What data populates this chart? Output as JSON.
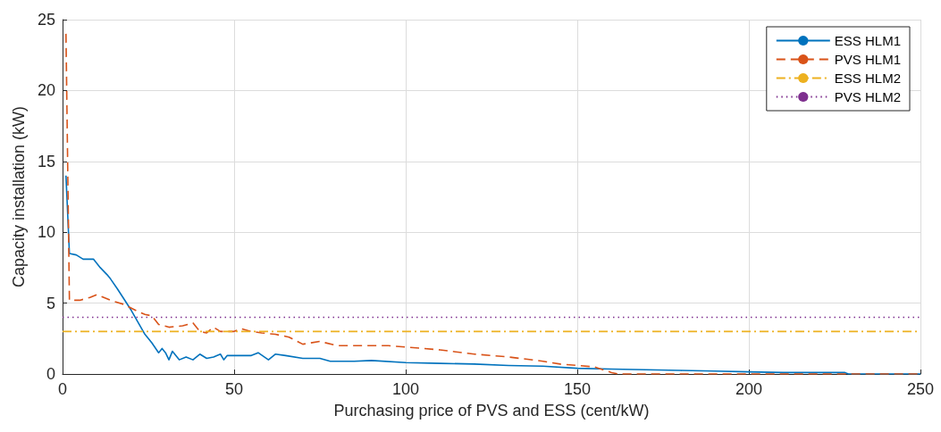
{
  "chart_data": {
    "type": "line",
    "xlabel": "Purchasing price of PVS and ESS (cent/kW)",
    "ylabel": "Capacity installation (kW)",
    "xlim": [
      0,
      250
    ],
    "ylim": [
      0,
      25
    ],
    "xticks": [
      0,
      50,
      100,
      150,
      200,
      250
    ],
    "yticks": [
      0,
      5,
      10,
      15,
      20,
      25
    ],
    "grid": true,
    "legend": "top right",
    "marker": "none",
    "series": [
      {
        "name": "ESS HLM1",
        "color": "#0072bd",
        "line_style": "solid",
        "x": [
          1,
          2,
          4,
          6,
          9,
          11,
          13,
          14,
          16,
          20,
          24,
          26,
          28,
          29,
          30,
          31,
          32,
          34,
          36,
          38,
          40,
          42,
          44,
          46,
          47,
          48,
          50,
          55,
          57,
          60,
          62,
          65,
          70,
          75,
          78,
          85,
          90,
          100,
          110,
          120,
          130,
          140,
          150,
          160,
          170,
          180,
          190,
          200,
          210,
          220,
          228,
          229,
          250
        ],
        "values": [
          14,
          8.5,
          8.4,
          8.1,
          8.1,
          7.5,
          7,
          6.7,
          6,
          4.5,
          2.8,
          2.2,
          1.5,
          1.8,
          1.5,
          1,
          1.6,
          1,
          1.2,
          1,
          1.4,
          1.1,
          1.2,
          1.4,
          1,
          1.3,
          1.3,
          1.3,
          1.5,
          1,
          1.4,
          1.3,
          1.1,
          1.1,
          0.9,
          0.9,
          0.95,
          0.8,
          0.75,
          0.7,
          0.6,
          0.55,
          0.4,
          0.35,
          0.3,
          0.25,
          0.2,
          0.15,
          0.1,
          0.1,
          0.1,
          0,
          0
        ]
      },
      {
        "name": "PVS HLM1",
        "color": "#d95319",
        "line_style": "dashed",
        "x": [
          1,
          2,
          5,
          8,
          10,
          14,
          18,
          22,
          24,
          26,
          28,
          31,
          35,
          38,
          40,
          42,
          44,
          46,
          50,
          52,
          55,
          58,
          62,
          66,
          70,
          75,
          80,
          90,
          95,
          100,
          110,
          120,
          130,
          140,
          145,
          150,
          155,
          160,
          162,
          250
        ],
        "values": [
          24,
          5.2,
          5.2,
          5.4,
          5.6,
          5.2,
          4.9,
          4.4,
          4.2,
          4.1,
          3.5,
          3.3,
          3.4,
          3.6,
          3,
          2.9,
          3.3,
          3,
          3,
          3.2,
          3,
          2.9,
          2.8,
          2.6,
          2.1,
          2.3,
          2,
          2,
          2,
          1.9,
          1.7,
          1.4,
          1.2,
          0.9,
          0.7,
          0.6,
          0.5,
          0.1,
          0,
          0
        ]
      },
      {
        "name": "ESS HLM2",
        "color": "#edb120",
        "line_style": "dashdot",
        "x": [
          0,
          250
        ],
        "values": [
          3,
          3
        ]
      },
      {
        "name": "PVS HLM2",
        "color": "#7e2f8e",
        "line_style": "dotted",
        "x": [
          0,
          250
        ],
        "values": [
          4,
          4
        ]
      }
    ]
  }
}
